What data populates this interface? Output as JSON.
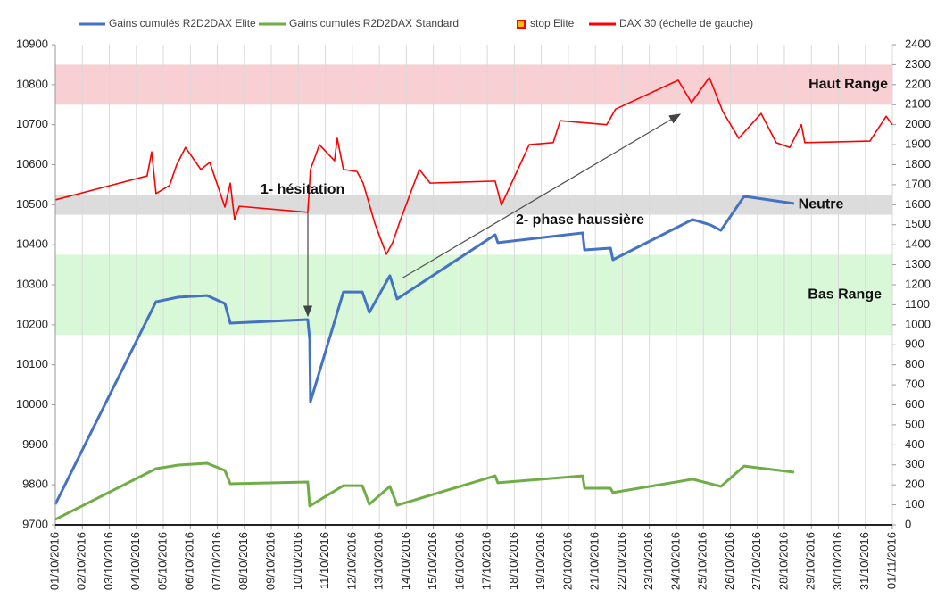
{
  "chart_data": {
    "type": "line",
    "xlim": [
      0,
      31
    ],
    "xticks": [
      {
        "value": 0,
        "label": "01/10/2016"
      },
      {
        "value": 1,
        "label": "02/10/2016"
      },
      {
        "value": 2,
        "label": "03/10/2016"
      },
      {
        "value": 3,
        "label": "04/10/2016"
      },
      {
        "value": 4,
        "label": "05/10/2016"
      },
      {
        "value": 5,
        "label": "06/10/2016"
      },
      {
        "value": 6,
        "label": "07/10/2016"
      },
      {
        "value": 7,
        "label": "08/10/2016"
      },
      {
        "value": 8,
        "label": "09/10/2016"
      },
      {
        "value": 9,
        "label": "10/10/2016"
      },
      {
        "value": 10,
        "label": "11/10/2016"
      },
      {
        "value": 11,
        "label": "12/10/2016"
      },
      {
        "value": 12,
        "label": "13/10/2016"
      },
      {
        "value": 13,
        "label": "14/10/2016"
      },
      {
        "value": 14,
        "label": "15/10/2016"
      },
      {
        "value": 15,
        "label": "16/10/2016"
      },
      {
        "value": 16,
        "label": "17/10/2016"
      },
      {
        "value": 17,
        "label": "18/10/2016"
      },
      {
        "value": 18,
        "label": "19/10/2016"
      },
      {
        "value": 19,
        "label": "20/10/2016"
      },
      {
        "value": 20,
        "label": "21/10/2016"
      },
      {
        "value": 21,
        "label": "22/10/2016"
      },
      {
        "value": 22,
        "label": "23/10/2016"
      },
      {
        "value": 23,
        "label": "24/10/2016"
      },
      {
        "value": 24,
        "label": "25/10/2016"
      },
      {
        "value": 25,
        "label": "26/10/2016"
      },
      {
        "value": 26,
        "label": "27/10/2016"
      },
      {
        "value": 27,
        "label": "28/10/2016"
      },
      {
        "value": 28,
        "label": "29/10/2016"
      },
      {
        "value": 29,
        "label": "30/10/2016"
      },
      {
        "value": 30,
        "label": "31/10/2016"
      },
      {
        "value": 31,
        "label": "01/11/2016"
      }
    ],
    "ylim": [
      9700,
      10900
    ],
    "yticks": [
      9700,
      9800,
      9900,
      10000,
      10100,
      10200,
      10300,
      10400,
      10500,
      10600,
      10700,
      10800,
      10900
    ],
    "y2lim": [
      0,
      2400
    ],
    "y2ticks": [
      0,
      100,
      200,
      300,
      400,
      500,
      600,
      700,
      800,
      900,
      1000,
      1100,
      1200,
      1300,
      1400,
      1500,
      1600,
      1700,
      1800,
      1900,
      2000,
      2100,
      2200,
      2300,
      2400
    ],
    "grid": true,
    "bands": [
      {
        "label": "Haut Range",
        "from": 10750,
        "to": 10850,
        "color": "#f8d0d4"
      },
      {
        "label": "Neutre",
        "from": 10475,
        "to": 10525,
        "color": "#dcdcdc"
      },
      {
        "label": "Bas Range",
        "from": 10175,
        "to": 10375,
        "color": "#d8f8d8"
      }
    ],
    "annotations": [
      "1- hésitation",
      "2- phase haussière"
    ],
    "series": [
      {
        "name": "Gains cumulés R2D2DAX Elite",
        "color": "#4472c4",
        "axis": "y2",
        "x": [
          0,
          3.73,
          4.56,
          5.62,
          6.28,
          6.48,
          9.35,
          9.42,
          9.45,
          10.67,
          11.37,
          11.63,
          12.39,
          12.66,
          16.29,
          16.39,
          19.53,
          19.6,
          20.56,
          20.65,
          23.6,
          24.26,
          24.65,
          25.51,
          27.36
        ],
        "values": [
          103,
          1115,
          1138,
          1146,
          1106,
          1008,
          1026,
          928,
          616,
          1164,
          1164,
          1062,
          1245,
          1129,
          1450,
          1410,
          1459,
          1374,
          1383,
          1325,
          1526,
          1499,
          1472,
          1642,
          1606
        ]
      },
      {
        "name": "Gains cumulés R2D2DAX Standard",
        "color": "#70ad47",
        "axis": "y2",
        "x": [
          0,
          3.73,
          4.56,
          5.62,
          6.28,
          6.48,
          9.35,
          9.42,
          10.67,
          11.37,
          11.63,
          12.39,
          12.66,
          16.29,
          16.39,
          19.53,
          19.6,
          20.56,
          20.65,
          23.6,
          24.65,
          25.51,
          27.36
        ],
        "values": [
          27,
          281,
          299,
          308,
          272,
          205,
          214,
          94,
          196,
          196,
          103,
          192,
          98,
          245,
          210,
          245,
          183,
          183,
          161,
          228,
          192,
          294,
          263
        ]
      },
      {
        "name": "stop Elite",
        "color": "#ff0000",
        "marker": "square",
        "marker_fill": "#ffc000",
        "axis": "y2",
        "x": [],
        "values": []
      },
      {
        "name": "DAX 30 (échelle de gauche)",
        "color": "#ff0000",
        "axis": "y",
        "x": [
          0,
          3.4,
          3.57,
          3.73,
          4.23,
          4.49,
          4.82,
          5.39,
          5.72,
          6.28,
          6.48,
          6.64,
          6.81,
          9.35,
          9.45,
          9.78,
          10.34,
          10.44,
          10.67,
          11.17,
          11.4,
          11.83,
          12.26,
          12.49,
          12.76,
          13.48,
          13.88,
          16.29,
          16.52,
          17.28,
          17.55,
          18.44,
          18.7,
          20.42,
          20.75,
          23.07,
          23.56,
          24.22,
          24.72,
          25.31,
          26.14,
          26.7,
          27.2,
          27.63,
          27.76,
          30.17,
          30.77,
          31
        ],
        "values": [
          10512,
          10572,
          10632,
          10528,
          10548,
          10599,
          10643,
          10588,
          10606,
          10494,
          10554,
          10463,
          10496,
          10481,
          10588,
          10650,
          10610,
          10666,
          10588,
          10583,
          10554,
          10454,
          10376,
          10405,
          10458,
          10588,
          10554,
          10559,
          10499,
          10610,
          10650,
          10655,
          10710,
          10700,
          10739,
          10811,
          10755,
          10818,
          10733,
          10666,
          10728,
          10655,
          10643,
          10700,
          10655,
          10659,
          10721,
          10700
        ]
      }
    ]
  }
}
